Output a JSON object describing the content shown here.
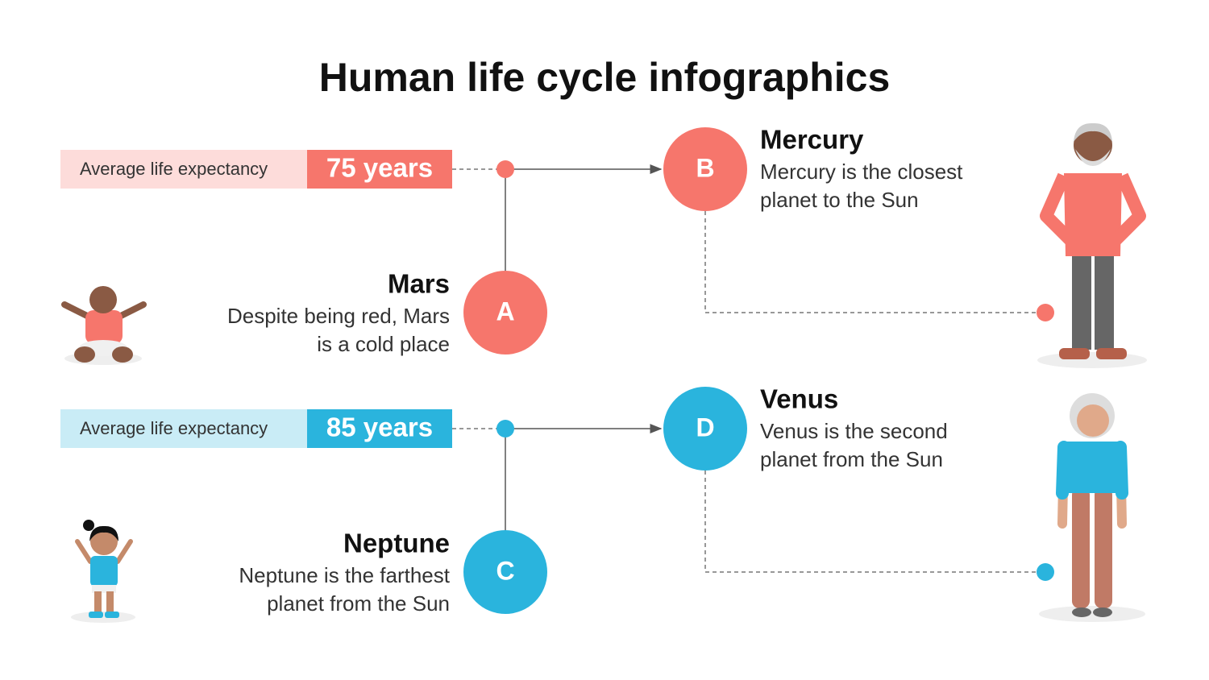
{
  "title": "Human life cycle infographics",
  "rows": [
    {
      "label": "Average life expectancy",
      "value": "75 years",
      "left": {
        "letter": "A",
        "title": "Mars",
        "lines": [
          "Despite being red, Mars",
          "is a cold place"
        ]
      },
      "right": {
        "letter": "B",
        "title": "Mercury",
        "lines": [
          "Mercury is the closest",
          "planet to the Sun"
        ]
      }
    },
    {
      "label": "Average life expectancy",
      "value": "85 years",
      "left": {
        "letter": "C",
        "title": "Neptune",
        "lines": [
          "Neptune is the farthest",
          "planet from the Sun"
        ]
      },
      "right": {
        "letter": "D",
        "title": "Venus",
        "lines": [
          "Venus is the second",
          "planet from the Sun"
        ]
      }
    }
  ]
}
